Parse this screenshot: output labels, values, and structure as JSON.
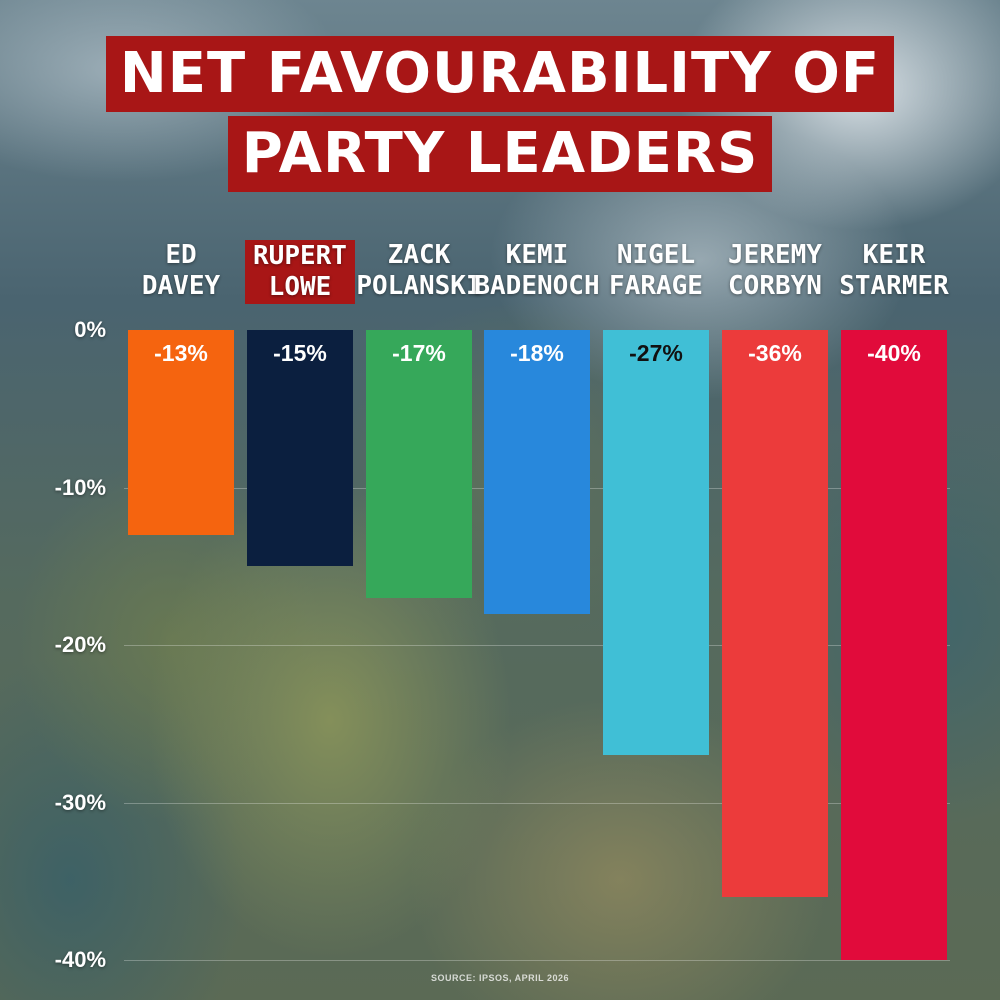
{
  "title": {
    "line1": "NET FAVOURABILITY OF",
    "line2": "PARTY LEADERS"
  },
  "source": "SOURCE: IPSOS, APRIL 2026",
  "chart_data": {
    "type": "bar",
    "title": "NET FAVOURABILITY OF PARTY LEADERS",
    "categories": [
      [
        "ED",
        "DAVEY"
      ],
      [
        "RUPERT",
        "LOWE"
      ],
      [
        "ZACK",
        "POLANSKI"
      ],
      [
        "KEMI",
        "BADENOCH"
      ],
      [
        "NIGEL",
        "FARAGE"
      ],
      [
        "JEREMY",
        "CORBYN"
      ],
      [
        "KEIR",
        "STARMER"
      ]
    ],
    "values": [
      -13,
      -15,
      -17,
      -18,
      -27,
      -36,
      -40
    ],
    "value_labels": [
      "-13%",
      "-15%",
      "-17%",
      "-18%",
      "-27%",
      "-36%",
      "-40%"
    ],
    "colors": [
      "#f5640f",
      "#0b1f3f",
      "#36a85a",
      "#2888dc",
      "#40bfd6",
      "#ec3b3b",
      "#e10b3b"
    ],
    "label_colors": [
      "#ffffff",
      "#ffffff",
      "#ffffff",
      "#ffffff",
      "#111111",
      "#ffffff",
      "#ffffff"
    ],
    "highlight_category": "RUPERT LOWE",
    "y_ticks": [
      "0%",
      "-10%",
      "-20%",
      "-30%",
      "-40%"
    ],
    "ylim": [
      -40,
      0
    ],
    "grid": true,
    "legend": "none"
  }
}
